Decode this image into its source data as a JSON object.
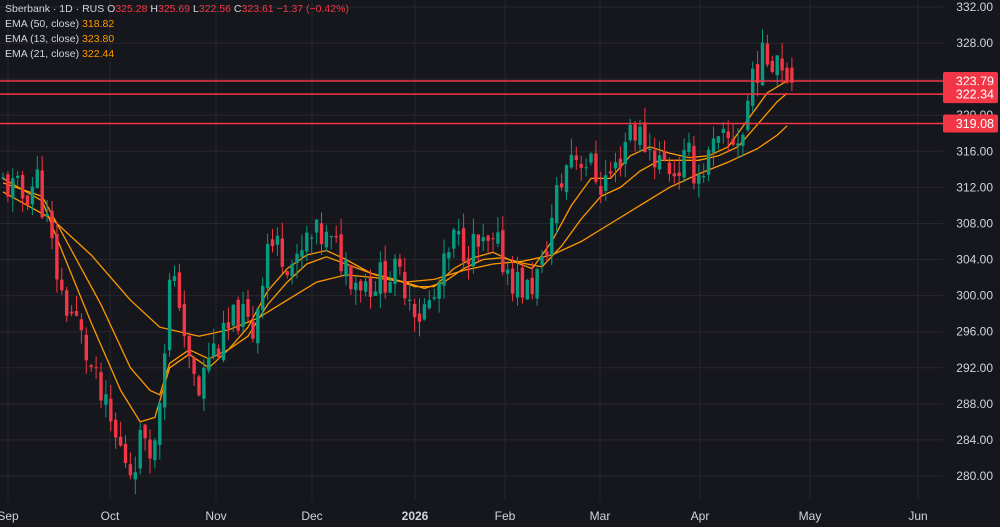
{
  "legend": {
    "symbol": "Sberbank",
    "interval": "1D",
    "exchange": "RUS",
    "open_label": "O",
    "open": "325.28",
    "high_label": "H",
    "high": "325.69",
    "low_label": "L",
    "low": "322.56",
    "close_label": "C",
    "close": "323.61",
    "change": "−1.37 (−0.42%)",
    "ema50_label": "EMA (50, close)",
    "ema50": "318.82",
    "ema13_label": "EMA (13, close)",
    "ema13": "323.80",
    "ema21_label": "EMA (21, close)",
    "ema21": "322.44"
  },
  "colors": {
    "background": "#16171c",
    "grid": "#26272d",
    "up": "#089981",
    "down": "#f23645",
    "ema": "#ff9800",
    "hline": "#f23645",
    "text": "#d1d4dc"
  },
  "chart_data": {
    "type": "candlestick",
    "title": "Sberbank · 1D · RUS",
    "ylim": [
      277,
      332
    ],
    "y_ticks": [
      280,
      284,
      288,
      292,
      296,
      300,
      304,
      308,
      312,
      316,
      320,
      324,
      328,
      332
    ],
    "x_ticks": [
      "Sep",
      "Oct",
      "Nov",
      "Dec",
      "2026",
      "Feb",
      "Mar",
      "Apr",
      "May",
      "Jun"
    ],
    "horizontal_lines": [
      {
        "value": 323.79,
        "label": "323.79"
      },
      {
        "value": 322.34,
        "label": "322.34"
      },
      {
        "value": 319.08,
        "label": "319.08"
      }
    ],
    "price_path": [
      [
        0,
        312.5
      ],
      [
        4,
        311.0
      ],
      [
        7,
        313.0
      ],
      [
        8,
        310.5
      ],
      [
        12,
        300.0
      ],
      [
        15,
        297.0
      ],
      [
        19,
        290.0
      ],
      [
        23,
        284.0
      ],
      [
        26,
        281.0
      ],
      [
        29,
        285.0
      ],
      [
        31,
        283.0
      ],
      [
        34,
        301.0
      ],
      [
        36,
        300.0
      ],
      [
        38,
        292.0
      ],
      [
        40,
        289.0
      ],
      [
        42,
        293.5
      ],
      [
        45,
        295.0
      ],
      [
        48,
        298.0
      ],
      [
        51,
        296.0
      ],
      [
        54,
        306.0
      ],
      [
        57,
        305.0
      ],
      [
        60,
        303.0
      ],
      [
        62,
        306.0
      ],
      [
        65,
        306.5
      ],
      [
        68,
        305.0
      ],
      [
        72,
        302.0
      ],
      [
        75,
        301.5
      ],
      [
        79,
        302.5
      ],
      [
        82,
        301.5
      ],
      [
        85,
        298.0
      ],
      [
        88,
        299.5
      ],
      [
        92,
        306.0
      ],
      [
        95,
        305.5
      ],
      [
        98,
        305.0
      ],
      [
        101,
        305.0
      ],
      [
        104,
        302.0
      ],
      [
        107,
        300.5
      ],
      [
        110,
        303.0
      ],
      [
        113,
        311.0
      ],
      [
        116,
        316.0
      ],
      [
        119,
        315.0
      ],
      [
        122,
        312.5
      ],
      [
        125,
        314.0
      ],
      [
        128,
        319.0
      ],
      [
        131,
        317.0
      ],
      [
        134,
        315.0
      ],
      [
        137,
        314.0
      ],
      [
        140,
        315.0
      ],
      [
        142,
        313.5
      ],
      [
        145,
        316.0
      ],
      [
        148,
        317.0
      ],
      [
        151,
        318.0
      ],
      [
        153,
        325.0
      ],
      [
        156,
        326.5
      ],
      [
        158,
        327.0
      ],
      [
        160,
        325.3
      ],
      [
        161,
        323.61
      ]
    ],
    "ema13_path": [
      [
        0,
        313.0
      ],
      [
        8,
        310.5
      ],
      [
        12,
        305.0
      ],
      [
        18,
        297.0
      ],
      [
        24,
        289.5
      ],
      [
        28,
        286.0
      ],
      [
        31,
        286.5
      ],
      [
        34,
        292.0
      ],
      [
        38,
        293.5
      ],
      [
        42,
        292.0
      ],
      [
        46,
        294.0
      ],
      [
        50,
        296.5
      ],
      [
        54,
        300.5
      ],
      [
        58,
        303.0
      ],
      [
        62,
        304.5
      ],
      [
        66,
        305.0
      ],
      [
        70,
        304.0
      ],
      [
        75,
        302.5
      ],
      [
        80,
        301.8
      ],
      [
        84,
        301.0
      ],
      [
        88,
        301.0
      ],
      [
        92,
        303.0
      ],
      [
        96,
        304.2
      ],
      [
        100,
        304.8
      ],
      [
        104,
        303.8
      ],
      [
        108,
        303.0
      ],
      [
        112,
        306.0
      ],
      [
        116,
        310.0
      ],
      [
        120,
        313.0
      ],
      [
        124,
        313.0
      ],
      [
        128,
        315.5
      ],
      [
        132,
        316.5
      ],
      [
        136,
        315.8
      ],
      [
        140,
        315.3
      ],
      [
        144,
        315.5
      ],
      [
        148,
        316.5
      ],
      [
        152,
        319.5
      ],
      [
        156,
        322.5
      ],
      [
        160,
        323.8
      ]
    ],
    "ema21_path": [
      [
        0,
        312.5
      ],
      [
        8,
        311.0
      ],
      [
        14,
        305.0
      ],
      [
        20,
        299.0
      ],
      [
        26,
        292.0
      ],
      [
        30,
        289.5
      ],
      [
        32,
        289.0
      ],
      [
        34,
        292.5
      ],
      [
        38,
        294.0
      ],
      [
        42,
        293.0
      ],
      [
        46,
        294.0
      ],
      [
        50,
        295.5
      ],
      [
        54,
        299.0
      ],
      [
        58,
        301.5
      ],
      [
        62,
        303.5
      ],
      [
        66,
        304.3
      ],
      [
        70,
        303.5
      ],
      [
        76,
        302.3
      ],
      [
        82,
        301.5
      ],
      [
        86,
        300.8
      ],
      [
        90,
        301.5
      ],
      [
        94,
        303.0
      ],
      [
        98,
        304.0
      ],
      [
        102,
        304.2
      ],
      [
        106,
        303.6
      ],
      [
        110,
        303.2
      ],
      [
        114,
        305.5
      ],
      [
        118,
        308.5
      ],
      [
        122,
        311.0
      ],
      [
        126,
        312.0
      ],
      [
        130,
        313.8
      ],
      [
        134,
        315.0
      ],
      [
        138,
        315.0
      ],
      [
        142,
        315.0
      ],
      [
        146,
        315.5
      ],
      [
        150,
        316.5
      ],
      [
        154,
        319.0
      ],
      [
        158,
        321.5
      ],
      [
        160,
        322.44
      ]
    ],
    "ema50_path": [
      [
        0,
        311.5
      ],
      [
        10,
        308.5
      ],
      [
        18,
        304.5
      ],
      [
        26,
        299.5
      ],
      [
        30,
        297.5
      ],
      [
        32,
        296.5
      ],
      [
        36,
        296.0
      ],
      [
        40,
        295.5
      ],
      [
        46,
        296.2
      ],
      [
        52,
        297.5
      ],
      [
        58,
        299.5
      ],
      [
        64,
        301.5
      ],
      [
        70,
        302.3
      ],
      [
        76,
        302.0
      ],
      [
        82,
        301.5
      ],
      [
        88,
        301.8
      ],
      [
        94,
        302.8
      ],
      [
        100,
        303.5
      ],
      [
        106,
        303.8
      ],
      [
        112,
        304.5
      ],
      [
        118,
        306.0
      ],
      [
        124,
        308.0
      ],
      [
        130,
        310.0
      ],
      [
        136,
        312.0
      ],
      [
        142,
        313.5
      ],
      [
        148,
        314.8
      ],
      [
        154,
        316.3
      ],
      [
        158,
        317.8
      ],
      [
        160,
        318.82
      ]
    ]
  }
}
